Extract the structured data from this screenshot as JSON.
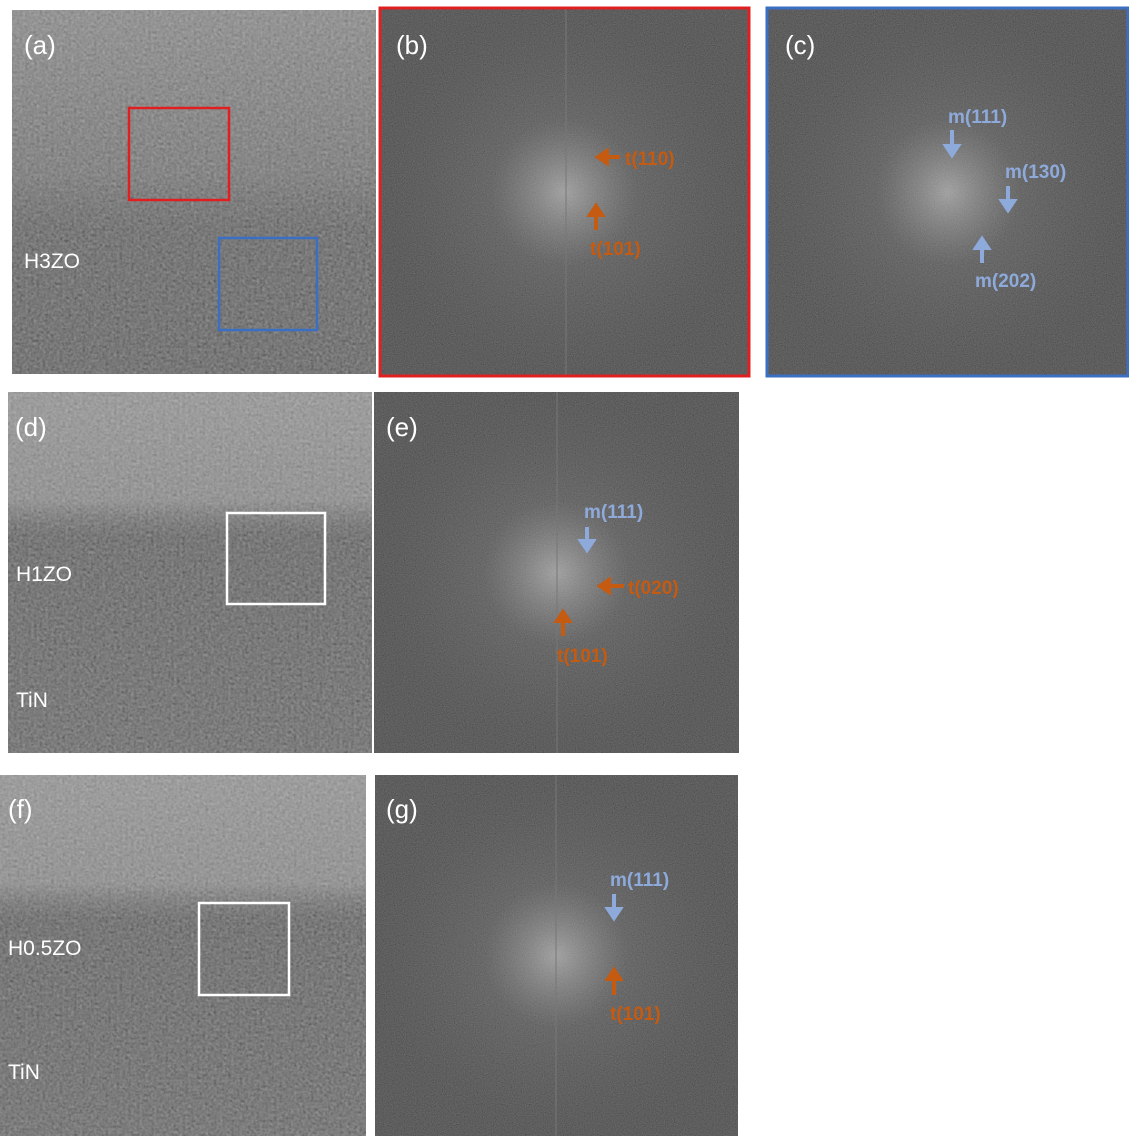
{
  "panels": [
    {
      "label": "(a)",
      "texts": [
        "H3ZO"
      ]
    },
    {
      "label": "(b)",
      "texts": [
        "t(110)",
        "t(101)"
      ]
    },
    {
      "label": "(c)",
      "texts": [
        "m(111)",
        "m(130)",
        "m(202)"
      ]
    },
    {
      "label": "(d)",
      "texts": [
        "H1ZO",
        "TiN"
      ]
    },
    {
      "label": "(e)",
      "texts": [
        "m(111)",
        "t(020)",
        "t(101)"
      ]
    },
    {
      "label": "(f)",
      "texts": [
        "H0.5ZO",
        "TiN"
      ]
    },
    {
      "label": "(g)",
      "texts": [
        "m(111)",
        "t(101)"
      ]
    }
  ]
}
